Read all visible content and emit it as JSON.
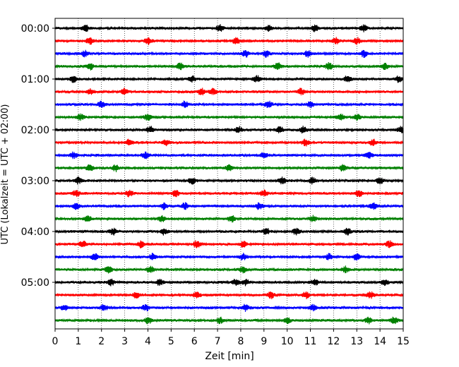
{
  "chart_data": {
    "type": "line",
    "title": "",
    "xlabel": "Zeit  [min]",
    "ylabel": "UTC (Lokalzeit = UTC + 02:00)",
    "xlim": [
      0,
      15
    ],
    "x_ticks": [
      0,
      1,
      2,
      3,
      4,
      5,
      6,
      7,
      8,
      9,
      10,
      11,
      12,
      13,
      14,
      15
    ],
    "x_tick_labels": [
      "0",
      "1",
      "2",
      "3",
      "4",
      "5",
      "6",
      "7",
      "8",
      "9",
      "10",
      "11",
      "12",
      "13",
      "14",
      "15"
    ],
    "y_tick_labels": [
      "00:00",
      "01:00",
      "02:00",
      "03:00",
      "04:00",
      "05:00"
    ],
    "y_tick_trace_index": [
      0,
      4,
      8,
      12,
      16,
      20
    ],
    "trace_minutes": 15,
    "trace_count": 24,
    "vertical_grid": true,
    "grid_style": "dotted",
    "colors": [
      "#000000",
      "#ff0000",
      "#0000ff",
      "#008000"
    ],
    "traces": [
      {
        "start": "00:00",
        "color": "#000000",
        "bursts": [
          1.3,
          7.1,
          9.2,
          11.2,
          13.3
        ]
      },
      {
        "start": "00:15",
        "color": "#ff0000",
        "bursts": [
          1.5,
          4.0,
          7.8,
          12.1,
          13.0
        ]
      },
      {
        "start": "00:30",
        "color": "#0000ff",
        "bursts": [
          1.3,
          8.2,
          9.1,
          10.9,
          13.3
        ]
      },
      {
        "start": "00:45",
        "color": "#008000",
        "bursts": [
          1.5,
          5.4,
          9.6,
          11.8,
          14.2
        ]
      },
      {
        "start": "01:00",
        "color": "#000000",
        "bursts": [
          0.8,
          5.9,
          8.7,
          12.6,
          14.8
        ]
      },
      {
        "start": "01:15",
        "color": "#ff0000",
        "bursts": [
          1.5,
          3.0,
          6.3,
          6.8,
          10.6
        ]
      },
      {
        "start": "01:30",
        "color": "#0000ff",
        "bursts": [
          2.0,
          5.6,
          9.2,
          11.0
        ]
      },
      {
        "start": "01:45",
        "color": "#008000",
        "bursts": [
          1.1,
          4.0,
          12.3,
          13.0
        ]
      },
      {
        "start": "02:00",
        "color": "#000000",
        "bursts": [
          4.1,
          7.9,
          9.7,
          10.7,
          14.9
        ]
      },
      {
        "start": "02:15",
        "color": "#ff0000",
        "bursts": [
          3.2,
          4.8,
          10.8,
          13.7
        ]
      },
      {
        "start": "02:30",
        "color": "#0000ff",
        "bursts": [
          0.8,
          3.9,
          9.0,
          13.5
        ]
      },
      {
        "start": "02:45",
        "color": "#008000",
        "bursts": [
          1.5,
          2.6,
          7.5,
          12.4
        ]
      },
      {
        "start": "03:00",
        "color": "#000000",
        "bursts": [
          1.0,
          5.9,
          9.8,
          11.1,
          14.0
        ]
      },
      {
        "start": "03:15",
        "color": "#ff0000",
        "bursts": [
          0.9,
          3.2,
          5.2,
          9.0,
          13.1
        ]
      },
      {
        "start": "03:30",
        "color": "#0000ff",
        "bursts": [
          0.9,
          4.7,
          5.6,
          8.8,
          13.7
        ]
      },
      {
        "start": "03:45",
        "color": "#008000",
        "bursts": [
          1.4,
          4.6,
          7.6,
          11.1
        ]
      },
      {
        "start": "04:00",
        "color": "#000000",
        "bursts": [
          2.5,
          4.7,
          9.1,
          10.4,
          12.6
        ]
      },
      {
        "start": "04:15",
        "color": "#ff0000",
        "bursts": [
          1.2,
          3.7,
          6.1,
          8.1,
          14.4
        ]
      },
      {
        "start": "04:30",
        "color": "#0000ff",
        "bursts": [
          1.7,
          4.2,
          8.1,
          11.8,
          13.0
        ]
      },
      {
        "start": "04:45",
        "color": "#008000",
        "bursts": [
          2.3,
          4.1,
          8.1,
          12.5
        ]
      },
      {
        "start": "05:00",
        "color": "#000000",
        "bursts": [
          2.4,
          4.5,
          7.8,
          8.2,
          11.2,
          14.2
        ]
      },
      {
        "start": "05:15",
        "color": "#ff0000",
        "bursts": [
          3.5,
          6.1,
          9.3,
          10.8,
          13.6
        ]
      },
      {
        "start": "05:30",
        "color": "#0000ff",
        "bursts": [
          0.4,
          2.1,
          3.9,
          8.2,
          11.1
        ]
      },
      {
        "start": "05:45",
        "color": "#008000",
        "bursts": [
          4.0,
          7.1,
          10.0,
          13.5,
          14.6
        ]
      }
    ]
  }
}
